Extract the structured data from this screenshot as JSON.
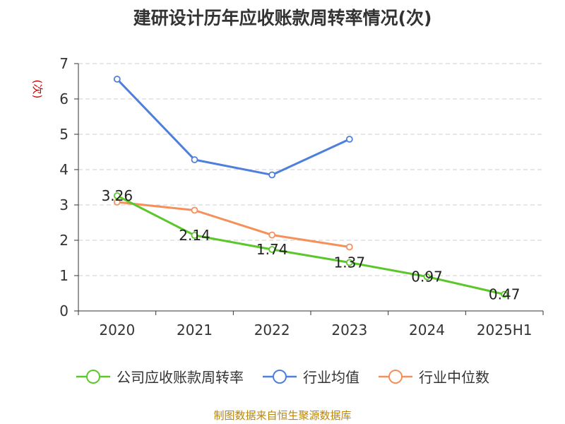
{
  "chart_data": {
    "type": "line",
    "title": "建研设计历年应收账款周转率情况(次)",
    "ylabel": "(次)",
    "xlabel": "",
    "categories": [
      "2020",
      "2021",
      "2022",
      "2023",
      "2024",
      "2025H1"
    ],
    "ylim": [
      0,
      7
    ],
    "yticks": [
      "0",
      "1",
      "2",
      "3",
      "4",
      "5",
      "6",
      "7"
    ],
    "grid": true,
    "legend_position": "bottom",
    "series": [
      {
        "name": "公司应收账款周转率",
        "color": "#5cc72b",
        "values": [
          3.26,
          2.14,
          1.74,
          1.37,
          0.97,
          0.47
        ],
        "labels": [
          "3.26",
          "2.14",
          "1.74",
          "1.37",
          "0.97",
          "0.47"
        ]
      },
      {
        "name": "行业均值",
        "color": "#4f7fdc",
        "values": [
          6.56,
          4.28,
          3.85,
          4.86,
          null,
          null
        ]
      },
      {
        "name": "行业中位数",
        "color": "#f6905a",
        "values": [
          3.08,
          2.85,
          2.15,
          1.81,
          null,
          null
        ]
      }
    ]
  },
  "source": "制图数据来自恒生聚源数据库"
}
